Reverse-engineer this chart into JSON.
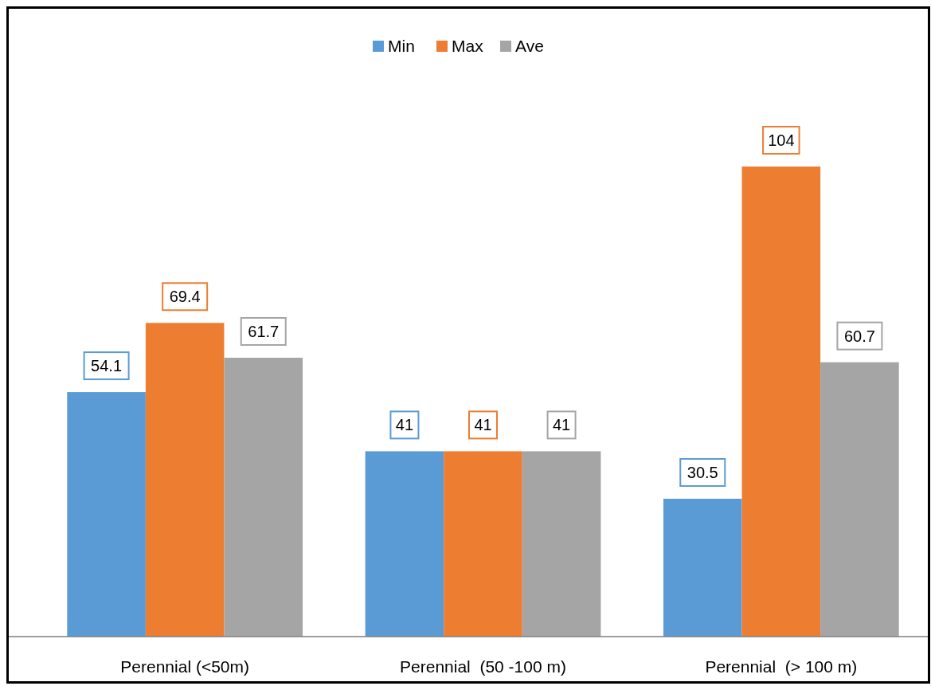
{
  "chart_data": {
    "type": "bar",
    "categories": [
      "Perennial (<50m)",
      "Perennial  (50 -100 m)",
      "Perennial  (> 100 m)"
    ],
    "series": [
      {
        "name": "Min",
        "color": "#5b9bd5",
        "values": [
          54.1,
          41,
          30.5
        ]
      },
      {
        "name": "Max",
        "color": "#ed7d31",
        "values": [
          69.4,
          41,
          104
        ]
      },
      {
        "name": "Ave",
        "color": "#a5a5a5",
        "values": [
          61.7,
          41,
          60.7
        ]
      }
    ],
    "data_labels": true,
    "legend": "top",
    "grid": false
  }
}
